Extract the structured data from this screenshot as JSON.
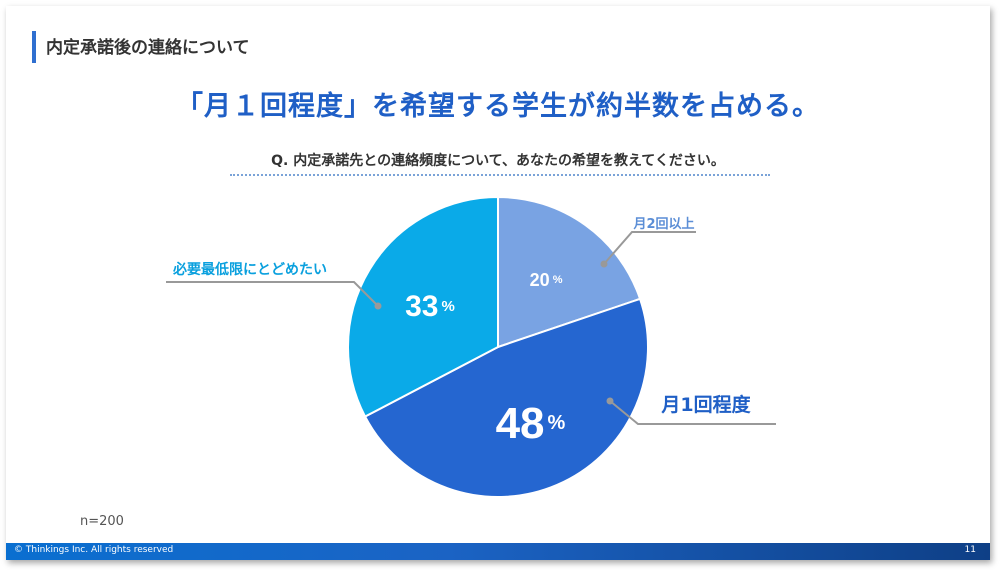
{
  "header": {
    "section_title": "内定承諾後の連絡について",
    "headline": "「月１回程度」を希望する学生が約半数を占める。",
    "question": "Q. 内定承諾先との連絡頻度について、あなたの希望を教えてください。"
  },
  "chart_data": {
    "type": "pie",
    "start_angle_deg": 0,
    "direction": "clockwise",
    "unit": "%",
    "slices": [
      {
        "label": "月2回以上",
        "value": 20,
        "color": "#79a3e3",
        "label_color": "#5b8ed6"
      },
      {
        "label": "月1回程度",
        "value": 48,
        "color": "#2566d0",
        "label_color": "#1f5fc6"
      },
      {
        "label": "必要最低限にとどめたい",
        "value": 33,
        "color": "#0aaae8",
        "label_color": "#0aa0de"
      }
    ]
  },
  "note": {
    "sample_size": "n=200"
  },
  "footer": {
    "copyright": "© Thinkings Inc. All rights reserved",
    "page_number": "11"
  }
}
